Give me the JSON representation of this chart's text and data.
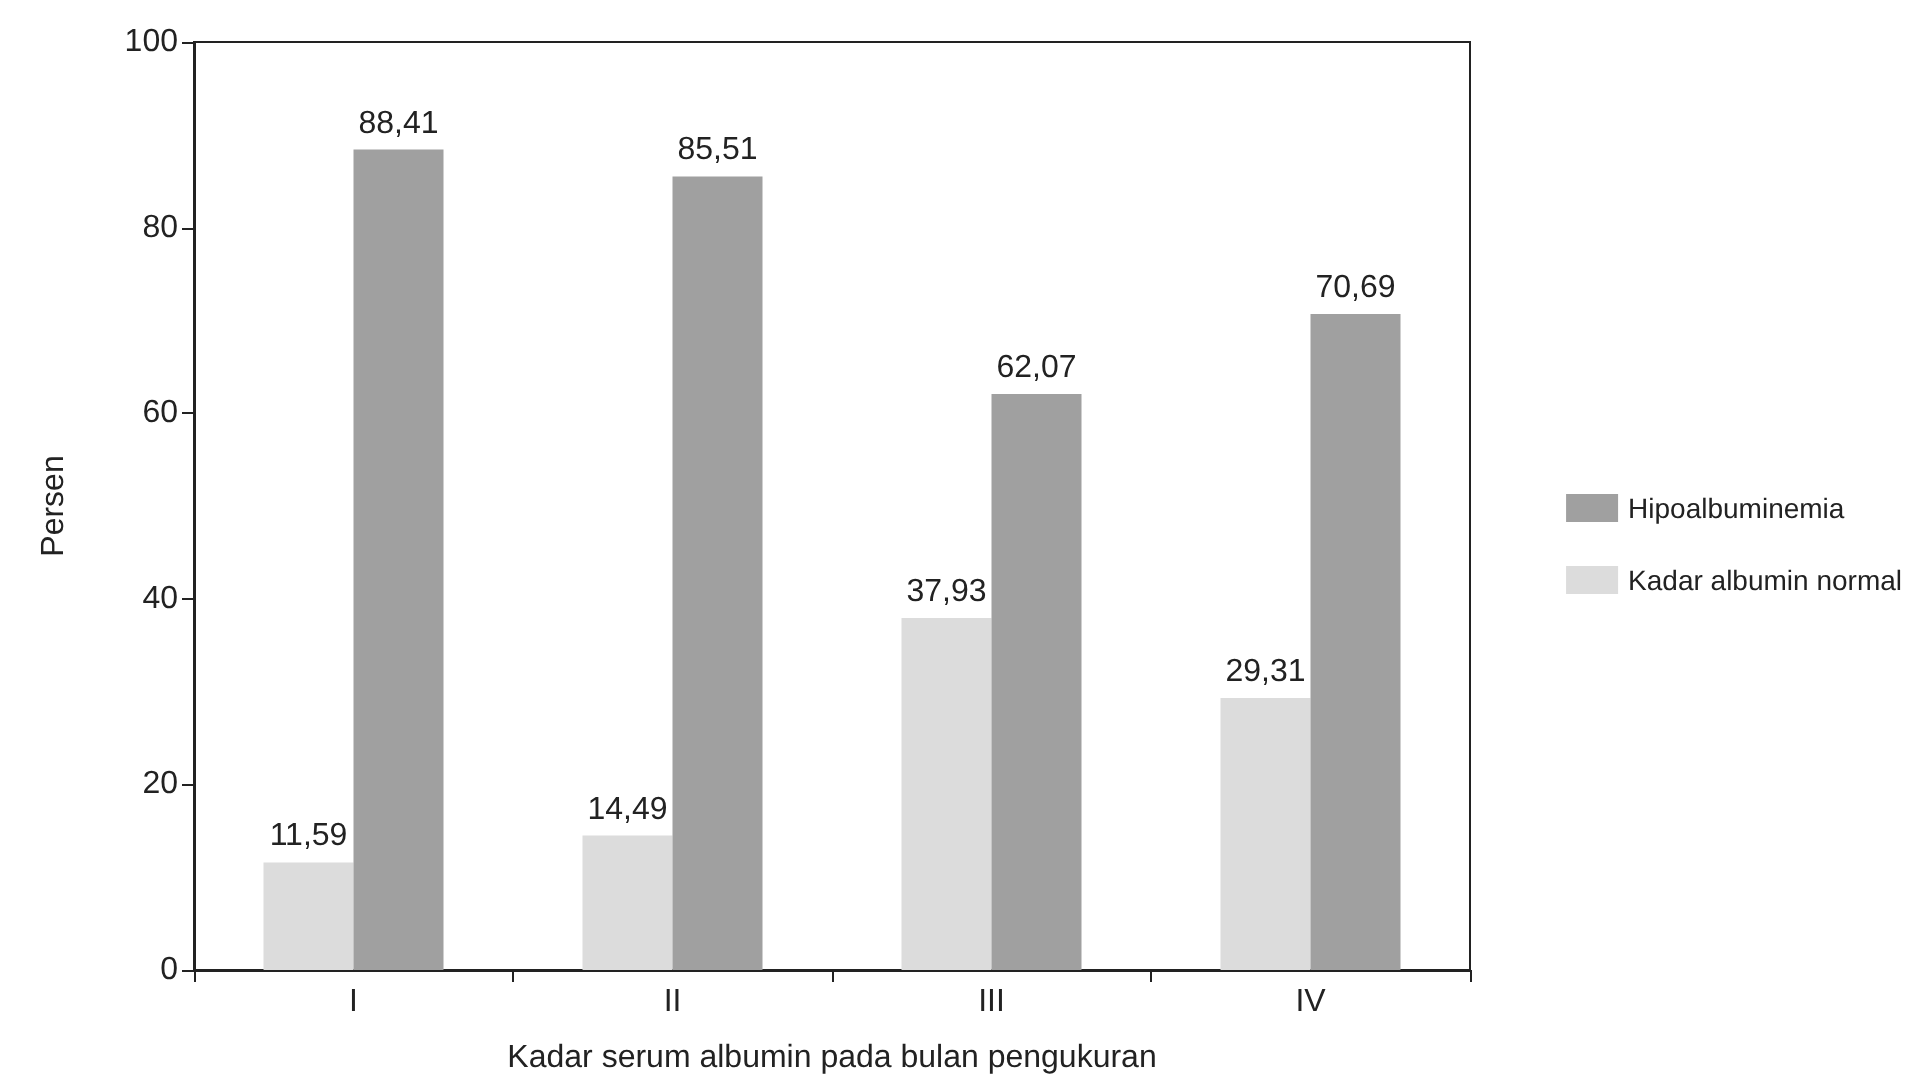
{
  "chart_data": {
    "type": "bar",
    "xlabel": "Kadar serum albumin pada bulan pengukuran",
    "ylabel": "Persen",
    "categories": [
      "I",
      "II",
      "III",
      "IV"
    ],
    "series": [
      {
        "name": "Kadar albumin normal",
        "color": "#dcdcdc",
        "values": [
          11.59,
          14.49,
          37.93,
          29.31
        ],
        "value_labels": [
          "11,59",
          "14,49",
          "37,93",
          "29,31"
        ]
      },
      {
        "name": "Hipoalbuminemia",
        "color": "#a0a0a0",
        "values": [
          88.41,
          85.51,
          62.07,
          70.69
        ],
        "value_labels": [
          "88,41",
          "85,51",
          "62,07",
          "70,69"
        ]
      }
    ],
    "ylim": [
      0,
      100
    ],
    "yticks": [
      0,
      20,
      40,
      60,
      80,
      100
    ],
    "grid": false,
    "legend": "right"
  }
}
